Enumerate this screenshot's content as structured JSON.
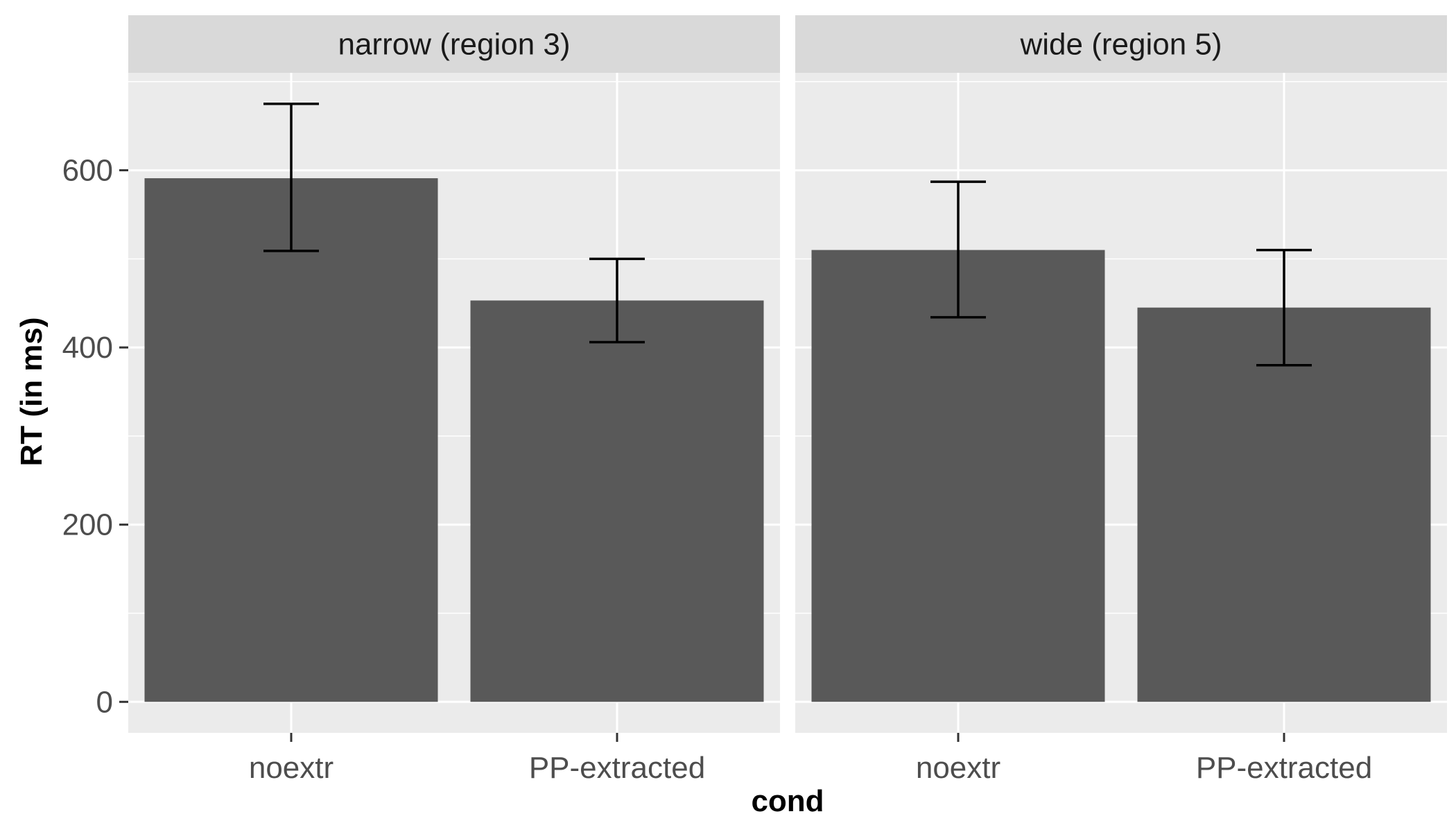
{
  "chart_data": {
    "type": "bar",
    "facet_by": "region",
    "xlabel": "cond",
    "ylabel": "RT (in ms)",
    "ylim": [
      -35,
      710
    ],
    "yticks": [
      0,
      200,
      400,
      600
    ],
    "ytick_labels": [
      "0",
      "200",
      "400",
      "600"
    ],
    "grid": true,
    "error_bars": true,
    "categories": [
      "noextr",
      "PP-extracted"
    ],
    "colors": {
      "bar": "#595959",
      "panel_bg": "#ebebeb",
      "strip_bg": "#d9d9d9",
      "grid": "#ffffff",
      "errorbar": "#000000",
      "tick_text": "#4d4d4d",
      "title_text": "#000000"
    },
    "facets": [
      {
        "label": "narrow (region 3)",
        "bars": [
          {
            "category": "noextr",
            "value": 591,
            "lower": 509,
            "upper": 675
          },
          {
            "category": "PP-extracted",
            "value": 453,
            "lower": 406,
            "upper": 500
          }
        ]
      },
      {
        "label": "wide (region 5)",
        "bars": [
          {
            "category": "noextr",
            "value": 510,
            "lower": 434,
            "upper": 587
          },
          {
            "category": "PP-extracted",
            "value": 445,
            "lower": 380,
            "upper": 510
          }
        ]
      }
    ]
  }
}
